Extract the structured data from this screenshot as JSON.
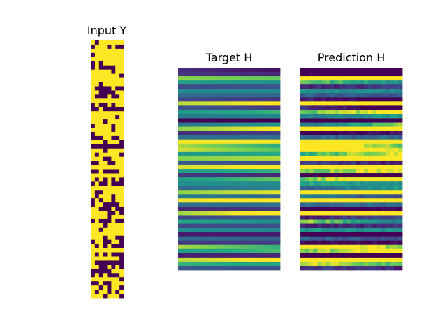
{
  "chart_data": [
    {
      "type": "heatmap",
      "title": "Input Y",
      "rows": 62,
      "cols": 8,
      "values": "binary",
      "colormap": "viridis",
      "axes": "off"
    },
    {
      "type": "heatmap",
      "title": "Target H",
      "rows": 48,
      "cols": 24,
      "colormap": "viridis",
      "axes": "off"
    },
    {
      "type": "heatmap",
      "title": "Prediction H",
      "rows": 48,
      "cols": 24,
      "colormap": "viridis",
      "axes": "off"
    }
  ],
  "colors": {
    "low": "#440154",
    "high": "#fde725",
    "background": "#ffffff"
  }
}
